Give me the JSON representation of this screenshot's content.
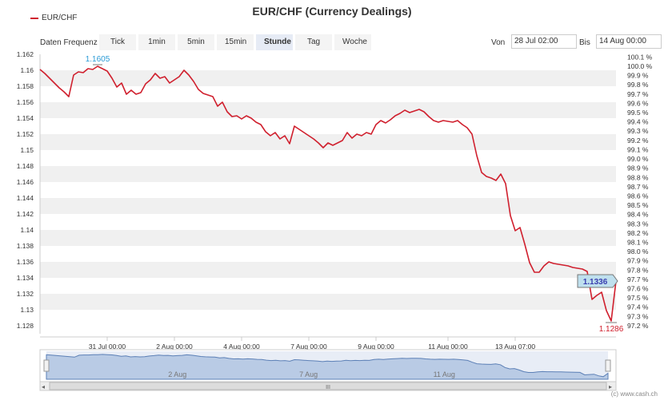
{
  "header": {
    "title": "EUR/CHF (Currency Dealings)",
    "legend": "EUR/CHF"
  },
  "toolbar": {
    "frequency_label": "Daten Frequenz",
    "buttons": [
      "Tick",
      "1min",
      "5min",
      "15min",
      "Stunde",
      "Tag",
      "Woche"
    ],
    "active": "Stunde",
    "from_label": "Von",
    "from_value": "28 Jul 02:00",
    "to_label": "Bis",
    "to_value": "14 Aug 00:00"
  },
  "navigator": {
    "labels": [
      "2 Aug",
      "7 Aug",
      "11 Aug"
    ],
    "scroll_grip": "III"
  },
  "credit": "(c) www.cash.ch",
  "colors": {
    "series": "#d0202e",
    "current_badge": "#3a3fb0",
    "high_label": "#2a9bd6",
    "low_label": "#d0202e"
  },
  "chart_data": {
    "type": "line",
    "series": [
      {
        "name": "EUR/CHF",
        "x": [
          0,
          1,
          2,
          3,
          4,
          5,
          6,
          7,
          8,
          9,
          10,
          11,
          12,
          13,
          14,
          15,
          16,
          17,
          18,
          19,
          20,
          21,
          22,
          23,
          24,
          25,
          26,
          27,
          28,
          29,
          30,
          31,
          32,
          33,
          34,
          35,
          36,
          37,
          38,
          39,
          40,
          41,
          42,
          43,
          44,
          45,
          46,
          47,
          48,
          49,
          50,
          51,
          52,
          53,
          54,
          55,
          56,
          57,
          58,
          59,
          60,
          61,
          62,
          63,
          64,
          65,
          66,
          67,
          68,
          69,
          70,
          71,
          72,
          73,
          74,
          75,
          76,
          77,
          78,
          79,
          80,
          81,
          82,
          83,
          84,
          85,
          86,
          87,
          88,
          89,
          90,
          91,
          92,
          93,
          94,
          95,
          96,
          97,
          98,
          99,
          100,
          101,
          102,
          103,
          104,
          105,
          106,
          107,
          108,
          109,
          110,
          111,
          112,
          113,
          114,
          115,
          116,
          117,
          118,
          119,
          120
        ],
        "values": [
          1.1601,
          1.1596,
          1.159,
          1.1584,
          1.1578,
          1.1573,
          1.1567,
          1.1594,
          1.1598,
          1.1597,
          1.1602,
          1.1601,
          1.1605,
          1.1602,
          1.1599,
          1.159,
          1.1579,
          1.1584,
          1.157,
          1.1575,
          1.157,
          1.1572,
          1.1583,
          1.1588,
          1.1596,
          1.159,
          1.1592,
          1.1584,
          1.1588,
          1.1592,
          1.16,
          1.1594,
          1.1586,
          1.1576,
          1.1571,
          1.1569,
          1.1567,
          1.1555,
          1.156,
          1.1548,
          1.1542,
          1.1543,
          1.1539,
          1.1543,
          1.154,
          1.1535,
          1.1532,
          1.1523,
          1.1518,
          1.1522,
          1.1514,
          1.1518,
          1.1508,
          1.153,
          1.1526,
          1.1522,
          1.1518,
          1.1514,
          1.1509,
          1.1503,
          1.1509,
          1.1506,
          1.1509,
          1.1512,
          1.1522,
          1.1515,
          1.152,
          1.1518,
          1.1522,
          1.152,
          1.1532,
          1.1537,
          1.1534,
          1.1538,
          1.1543,
          1.1546,
          1.155,
          1.1547,
          1.1549,
          1.1551,
          1.1548,
          1.1542,
          1.1537,
          1.1535,
          1.1537,
          1.1536,
          1.1535,
          1.1537,
          1.1532,
          1.1528,
          1.152,
          1.1493,
          1.1472,
          1.1467,
          1.1465,
          1.1462,
          1.147,
          1.1458,
          1.1418,
          1.1399,
          1.1403,
          1.1382,
          1.1359,
          1.1347,
          1.1347,
          1.1355,
          1.136,
          1.1358,
          1.1357,
          1.1356,
          1.1355,
          1.1353,
          1.1352,
          1.1351,
          1.1348,
          1.1313,
          1.1318,
          1.1322,
          1.1299,
          1.1286,
          1.1336
        ]
      }
    ],
    "x_tick_labels": [
      "31 Jul 00:00",
      "2 Aug 00:00",
      "4 Aug 00:00",
      "7 Aug 00:00",
      "9 Aug 00:00",
      "11 Aug 00:00",
      "13 Aug 07:00"
    ],
    "x_tick_at": [
      14,
      28,
      42,
      56,
      70,
      85,
      99
    ],
    "y_ticks": [
      1.128,
      1.13,
      1.132,
      1.134,
      1.136,
      1.138,
      1.14,
      1.142,
      1.144,
      1.146,
      1.148,
      1.15,
      1.152,
      1.154,
      1.156,
      1.158,
      1.16,
      1.162
    ],
    "y_tick_labels": [
      "1.128",
      "1.13",
      "1.132",
      "1.134",
      "1.136",
      "1.138",
      "1.14",
      "1.142",
      "1.144",
      "1.146",
      "1.148",
      "1.15",
      "1.152",
      "1.154",
      "1.156",
      "1.158",
      "1.16",
      "1.162"
    ],
    "ylim": [
      1.127,
      1.162
    ],
    "y2_base": 1.1605,
    "y2_ticks": [
      "97.2 %",
      "97.3 %",
      "97.4 %",
      "97.5 %",
      "97.6 %",
      "97.7 %",
      "97.8 %",
      "97.9 %",
      "98.0 %",
      "98.1 %",
      "98.2 %",
      "98.3 %",
      "98.4 %",
      "98.5 %",
      "98.6 %",
      "98.7 %",
      "98.8 %",
      "98.9 %",
      "99.0 %",
      "99.1 %",
      "99.2 %",
      "99.3 %",
      "99.4 %",
      "99.5 %",
      "99.6 %",
      "99.7 %",
      "99.8 %",
      "99.9 %",
      "100.0 %",
      "100.1 %"
    ],
    "annotations": {
      "high": "1.1605",
      "low": "1.1286",
      "last": "1.1336"
    },
    "grid": true,
    "legend_position": "top-left"
  }
}
